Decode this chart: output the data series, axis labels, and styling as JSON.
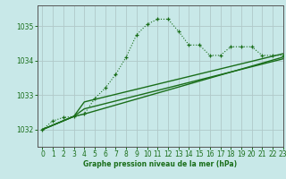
{
  "bg_color": "#c8e8e8",
  "grid_color": "#b0c8c8",
  "line_color": "#1a6e1a",
  "title": "Graphe pression niveau de la mer (hPa)",
  "xlim": [
    -0.5,
    23
  ],
  "ylim": [
    1031.5,
    1035.6
  ],
  "yticks": [
    1032,
    1033,
    1034,
    1035
  ],
  "xticks": [
    0,
    1,
    2,
    3,
    4,
    5,
    6,
    7,
    8,
    9,
    10,
    11,
    12,
    13,
    14,
    15,
    16,
    17,
    18,
    19,
    20,
    21,
    22,
    23
  ],
  "series1": {
    "x": [
      0,
      1,
      2,
      3,
      4,
      5,
      6,
      7,
      8,
      9,
      10,
      11,
      12,
      13,
      14,
      15,
      16,
      17,
      18,
      19,
      20,
      21,
      22,
      23
    ],
    "y": [
      1032.0,
      1032.25,
      1032.35,
      1032.38,
      1032.45,
      1032.9,
      1033.2,
      1033.6,
      1034.1,
      1034.75,
      1035.05,
      1035.2,
      1035.2,
      1034.85,
      1034.45,
      1034.45,
      1034.15,
      1034.15,
      1034.4,
      1034.4,
      1034.4,
      1034.15,
      1034.15,
      1034.15
    ]
  },
  "series2": {
    "x": [
      0,
      3,
      4,
      23
    ],
    "y": [
      1032.0,
      1032.38,
      1032.45,
      1034.1
    ]
  },
  "series3": {
    "x": [
      0,
      3,
      4,
      23
    ],
    "y": [
      1032.0,
      1032.38,
      1032.8,
      1034.2
    ]
  },
  "series4": {
    "x": [
      0,
      3,
      4,
      23
    ],
    "y": [
      1032.0,
      1032.38,
      1032.6,
      1034.05
    ]
  }
}
